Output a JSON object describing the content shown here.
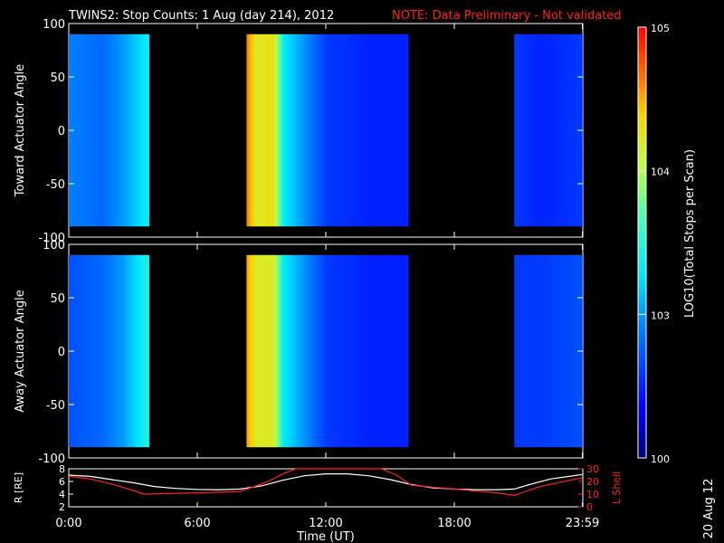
{
  "title": "TWINS2: Stop Counts:  1 Aug (day 214), 2012",
  "note": "NOTE: Data Preliminary - Not validated",
  "date_stamp": "20 Aug 12",
  "colors": {
    "note": "#ff2020",
    "background": "#000000",
    "axes": "#ffffff",
    "r_line": "#ffffff",
    "lshell_line": "#ff2020",
    "panel_fill": "#000000"
  },
  "chart_data": [
    {
      "type": "heatmap",
      "ylabel": "Toward Actuator Angle",
      "xlim": [
        0,
        24
      ],
      "ylim": [
        -100,
        100
      ],
      "yticks": [
        "100",
        "50",
        "0",
        "-50",
        "-100"
      ],
      "data_coverage_hours": [
        [
          0.0,
          3.75
        ],
        [
          8.3,
          15.85
        ],
        [
          20.8,
          23.98
        ]
      ],
      "angle_range": [
        -90,
        90
      ],
      "scale": "log",
      "log10_intensity_by_time": [
        [
          0.0,
          2.9
        ],
        [
          1.5,
          2.8
        ],
        [
          2.5,
          3.0
        ],
        [
          3.5,
          3.3
        ],
        [
          8.3,
          4.6
        ],
        [
          8.7,
          4.2
        ],
        [
          9.5,
          4.3
        ],
        [
          10.0,
          3.3
        ],
        [
          12.0,
          2.6
        ],
        [
          14.0,
          2.5
        ],
        [
          15.5,
          2.5
        ],
        [
          20.8,
          2.6
        ],
        [
          22.0,
          2.5
        ],
        [
          23.9,
          2.6
        ]
      ],
      "colorbar": {
        "label": "LOG10(Total Stops per Scan)",
        "ticks": [
          "10^5",
          "10^4",
          "10^3",
          "100"
        ],
        "range_log10": [
          2,
          5
        ]
      }
    },
    {
      "type": "heatmap",
      "ylabel": "Away Actuator Angle",
      "xlim": [
        0,
        24
      ],
      "ylim": [
        -100,
        100
      ],
      "yticks": [
        "100",
        "50",
        "0",
        "-50",
        "-100"
      ],
      "data_coverage_hours": [
        [
          0.0,
          3.75
        ],
        [
          8.3,
          15.85
        ],
        [
          20.8,
          23.98
        ]
      ],
      "angle_range": [
        -90,
        90
      ],
      "scale": "log",
      "log10_intensity_by_time": [
        [
          0.0,
          2.7
        ],
        [
          1.5,
          2.8
        ],
        [
          2.5,
          3.0
        ],
        [
          3.5,
          3.4
        ],
        [
          8.3,
          4.5
        ],
        [
          8.7,
          4.2
        ],
        [
          9.5,
          4.2
        ],
        [
          10.0,
          3.3
        ],
        [
          12.0,
          2.6
        ],
        [
          14.0,
          2.5
        ],
        [
          15.5,
          2.5
        ],
        [
          20.8,
          2.6
        ],
        [
          22.0,
          2.6
        ],
        [
          23.9,
          2.7
        ]
      ]
    },
    {
      "type": "line",
      "xlabel": "Time (UT)",
      "xticks": [
        "0:00",
        "6:00",
        "12:00",
        "18:00",
        "23:59"
      ],
      "xtick_hours": [
        0,
        6,
        12,
        18,
        23.98
      ],
      "xlim": [
        0,
        24
      ],
      "ylabel_left": "R [RE]",
      "ylim_left": [
        2,
        8
      ],
      "yticks_left": [
        "8",
        "6",
        "4",
        "2"
      ],
      "ylabel_right": "L Shell",
      "ylim_right": [
        0,
        30
      ],
      "yticks_right": [
        "30",
        "20",
        "10",
        "0"
      ],
      "series": [
        {
          "name": "R [RE]",
          "axis": "left",
          "x": [
            0.0,
            1.0,
            2.0,
            3.0,
            4.0,
            5.0,
            6.0,
            7.0,
            8.0,
            9.0,
            10.0,
            11.0,
            12.0,
            13.0,
            14.0,
            15.0,
            16.0,
            17.0,
            18.0,
            19.0,
            20.0,
            20.8,
            21.5,
            22.5,
            23.98
          ],
          "y": [
            7.0,
            6.8,
            6.3,
            5.8,
            5.2,
            4.9,
            4.75,
            4.7,
            4.8,
            5.3,
            6.2,
            6.9,
            7.2,
            7.2,
            6.9,
            6.3,
            5.5,
            5.0,
            4.8,
            4.7,
            4.7,
            4.8,
            5.5,
            6.4,
            7.1
          ]
        },
        {
          "name": "L Shell",
          "axis": "right",
          "x": [
            0.0,
            1.0,
            2.0,
            3.0,
            3.5,
            6.0,
            8.0,
            8.5,
            9.3,
            10.0,
            10.6,
            14.6,
            15.3,
            16.0,
            18.0,
            20.0,
            20.8,
            22.0,
            23.98
          ],
          "y": [
            24,
            22,
            18,
            13,
            10,
            11,
            12,
            15,
            20,
            26,
            31,
            31,
            25,
            17,
            14,
            11,
            9,
            16,
            23
          ]
        }
      ]
    }
  ]
}
